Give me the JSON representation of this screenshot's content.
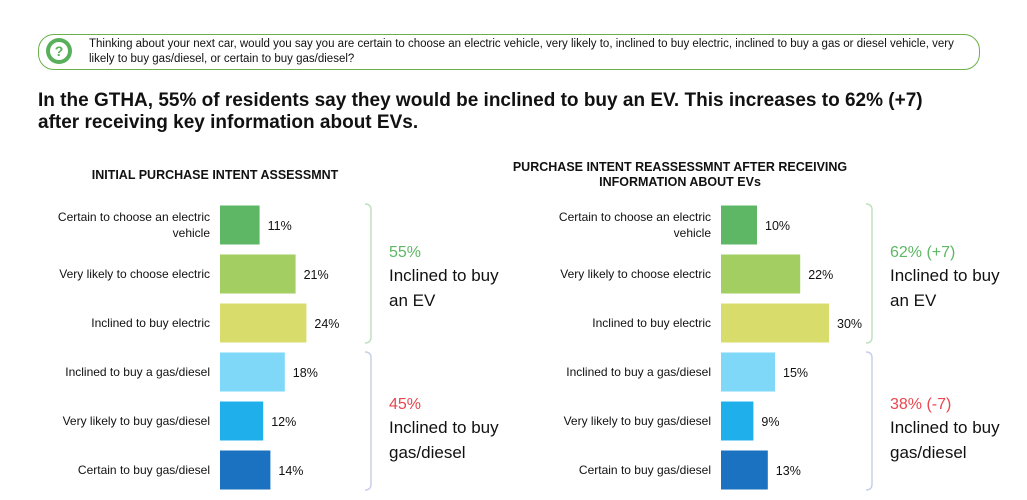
{
  "question": "Thinking about your next car, would you say you are certain to choose an electric vehicle, very likely to, inclined to buy electric, inclined to buy a gas or diesel vehicle, very likely to buy gas/diesel, or certain to buy gas/diesel?",
  "headline": "In the GTHA, 55% of residents say they would be inclined to buy an EV. This increases to 62% (+7) after receiving key information about EVs.",
  "colors": {
    "certain_ev": "#5db764",
    "very_likely_ev": "#a3cf62",
    "inclined_ev": "#d8dc6a",
    "inclined_gas": "#7fd8f8",
    "very_likely_gas": "#1fb0ec",
    "certain_gas": "#1a72c0",
    "ev_summary": "#5db764",
    "gas_summary": "#e8464f"
  },
  "chart_data": [
    {
      "type": "bar",
      "title": "INITIAL PURCHASE INTENT ASSESSMNT",
      "categories": [
        "Certain to choose an electric vehicle",
        "Very likely to choose electric",
        "Inclined to buy electric",
        "Inclined to buy a gas/diesel",
        "Very likely to buy gas/diesel",
        "Certain to buy gas/diesel"
      ],
      "values": [
        11,
        21,
        24,
        18,
        12,
        14
      ],
      "value_labels": [
        "11%",
        "21%",
        "24%",
        "18%",
        "12%",
        "14%"
      ],
      "summary": [
        {
          "pct": "55%",
          "text": "Inclined to buy an EV"
        },
        {
          "pct": "45%",
          "text": "Inclined to buy gas/diesel"
        }
      ]
    },
    {
      "type": "bar",
      "title": "PURCHASE INTENT REASSESSMNT AFTER RECEIVING INFORMATION ABOUT EVs",
      "categories": [
        "Certain to choose an electric vehicle",
        "Very likely to choose electric",
        "Inclined to buy electric",
        "Inclined to buy a gas/diesel",
        "Very likely to buy gas/diesel",
        "Certain to buy gas/diesel"
      ],
      "values": [
        10,
        22,
        30,
        15,
        9,
        13
      ],
      "value_labels": [
        "10%",
        "22%",
        "30%",
        "15%",
        "9%",
        "13%"
      ],
      "summary": [
        {
          "pct": "62% (+7)",
          "text": "Inclined to buy an EV"
        },
        {
          "pct": "38% (-7)",
          "text": "Inclined to buy gas/diesel"
        }
      ]
    }
  ]
}
